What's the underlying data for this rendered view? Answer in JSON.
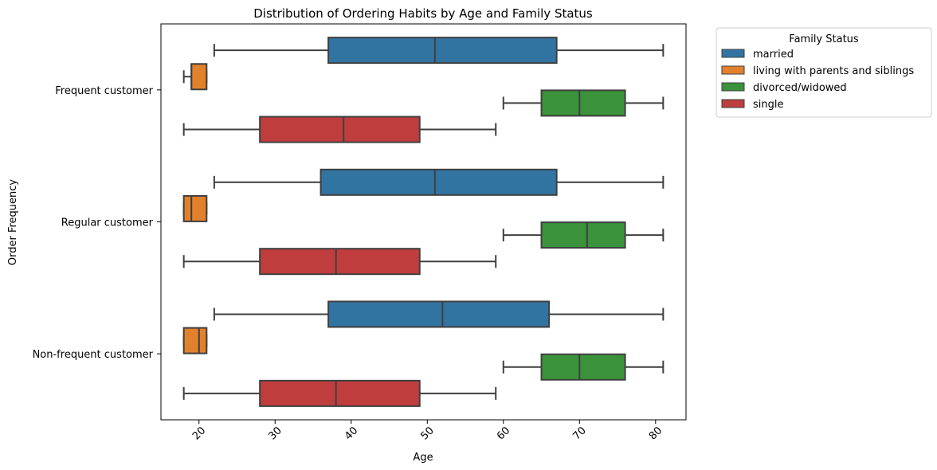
{
  "chart_data": {
    "type": "boxplot",
    "title": "Distribution of Ordering Habits by Age and Family Status",
    "xlabel": "Age",
    "ylabel": "Order Frequency",
    "xlim": [
      15,
      84
    ],
    "xticks": [
      20,
      30,
      40,
      50,
      60,
      70,
      80
    ],
    "categories": [
      "Frequent customer",
      "Regular customer",
      "Non-frequent customer"
    ],
    "legend": {
      "title": "Family Status",
      "placement": "outside-top-right"
    },
    "grid": false,
    "series": [
      {
        "name": "married",
        "color": "#3274a1",
        "boxes": [
          {
            "whislo": 22,
            "q1": 37,
            "med": 51,
            "q3": 67,
            "whishi": 81
          },
          {
            "whislo": 22,
            "q1": 36,
            "med": 51,
            "q3": 67,
            "whishi": 81
          },
          {
            "whislo": 22,
            "q1": 37,
            "med": 52,
            "q3": 66,
            "whishi": 81
          }
        ]
      },
      {
        "name": "living with parents and siblings",
        "color": "#e1812c",
        "boxes": [
          {
            "whislo": 18,
            "q1": 19,
            "med": 19,
            "q3": 21,
            "whishi": 21
          },
          {
            "whislo": 18,
            "q1": 18,
            "med": 19,
            "q3": 21,
            "whishi": 21
          },
          {
            "whislo": 18,
            "q1": 18,
            "med": 20,
            "q3": 21,
            "whishi": 21
          }
        ]
      },
      {
        "name": "divorced/widowed",
        "color": "#3a923a",
        "boxes": [
          {
            "whislo": 60,
            "q1": 65,
            "med": 70,
            "q3": 76,
            "whishi": 81
          },
          {
            "whislo": 60,
            "q1": 65,
            "med": 71,
            "q3": 76,
            "whishi": 81
          },
          {
            "whislo": 60,
            "q1": 65,
            "med": 70,
            "q3": 76,
            "whishi": 81
          }
        ]
      },
      {
        "name": "single",
        "color": "#c03d3e",
        "boxes": [
          {
            "whislo": 18,
            "q1": 28,
            "med": 39,
            "q3": 49,
            "whishi": 59
          },
          {
            "whislo": 18,
            "q1": 28,
            "med": 38,
            "q3": 49,
            "whishi": 59
          },
          {
            "whislo": 18,
            "q1": 28,
            "med": 38,
            "q3": 49,
            "whishi": 59
          }
        ]
      }
    ]
  }
}
